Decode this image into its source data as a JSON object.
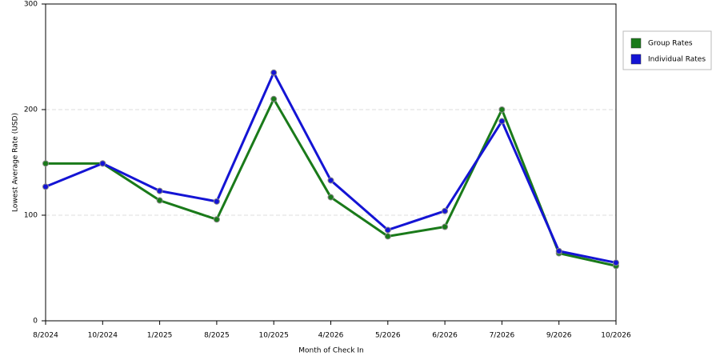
{
  "chart_data": {
    "type": "line",
    "x_label": "Month of Check In",
    "y_label": "Lowest Average Rate (USD)",
    "categories": [
      "8/2024",
      "10/2024",
      "1/2025",
      "8/2025",
      "10/2025",
      "4/2026",
      "5/2026",
      "6/2026",
      "7/2026",
      "9/2026",
      "10/2026"
    ],
    "series": [
      {
        "name": "Group Rates",
        "color": "#1a7a1a",
        "values": [
          149,
          149,
          114,
          96,
          210,
          117,
          80,
          89,
          200,
          64,
          52
        ]
      },
      {
        "name": "Individual Rates",
        "color": "#1414d4",
        "values": [
          127,
          149,
          123,
          113,
          235,
          133,
          86,
          104,
          189,
          66,
          55
        ]
      }
    ],
    "ylim": [
      0,
      300
    ],
    "yticks": [
      0,
      100,
      200,
      300
    ],
    "grid": true,
    "legend": "right"
  }
}
